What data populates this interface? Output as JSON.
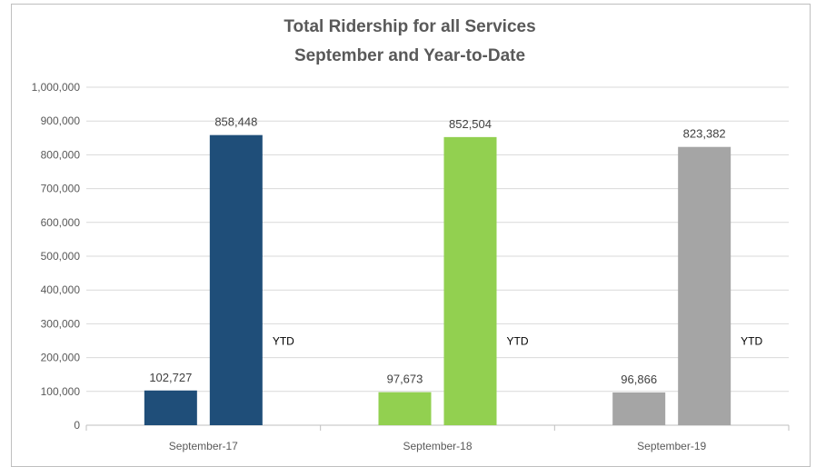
{
  "chart_data": {
    "type": "bar",
    "title": "Total Ridership for all Services",
    "subtitle": "September and Year-to-Date",
    "categories": [
      "September-17",
      "September-18",
      "September-19"
    ],
    "monthly": [
      102727,
      97673,
      96866
    ],
    "ytd": [
      858448,
      852504,
      823382
    ],
    "monthly_labels": [
      "102,727",
      "97,673",
      "96,866"
    ],
    "ytd_labels": [
      "858,448",
      "852,504",
      "823,382"
    ],
    "annotation": "YTD",
    "colors": [
      "#1f4e79",
      "#92d050",
      "#a5a5a5"
    ],
    "ylim": [
      0,
      1000000
    ],
    "yticks": [
      0,
      100000,
      200000,
      300000,
      400000,
      500000,
      600000,
      700000,
      800000,
      900000,
      1000000
    ],
    "ytick_labels": [
      "0",
      "100,000",
      "200,000",
      "300,000",
      "400,000",
      "500,000",
      "600,000",
      "700,000",
      "800,000",
      "900,000",
      "1,000,000"
    ],
    "grid": true,
    "legend": "none"
  }
}
